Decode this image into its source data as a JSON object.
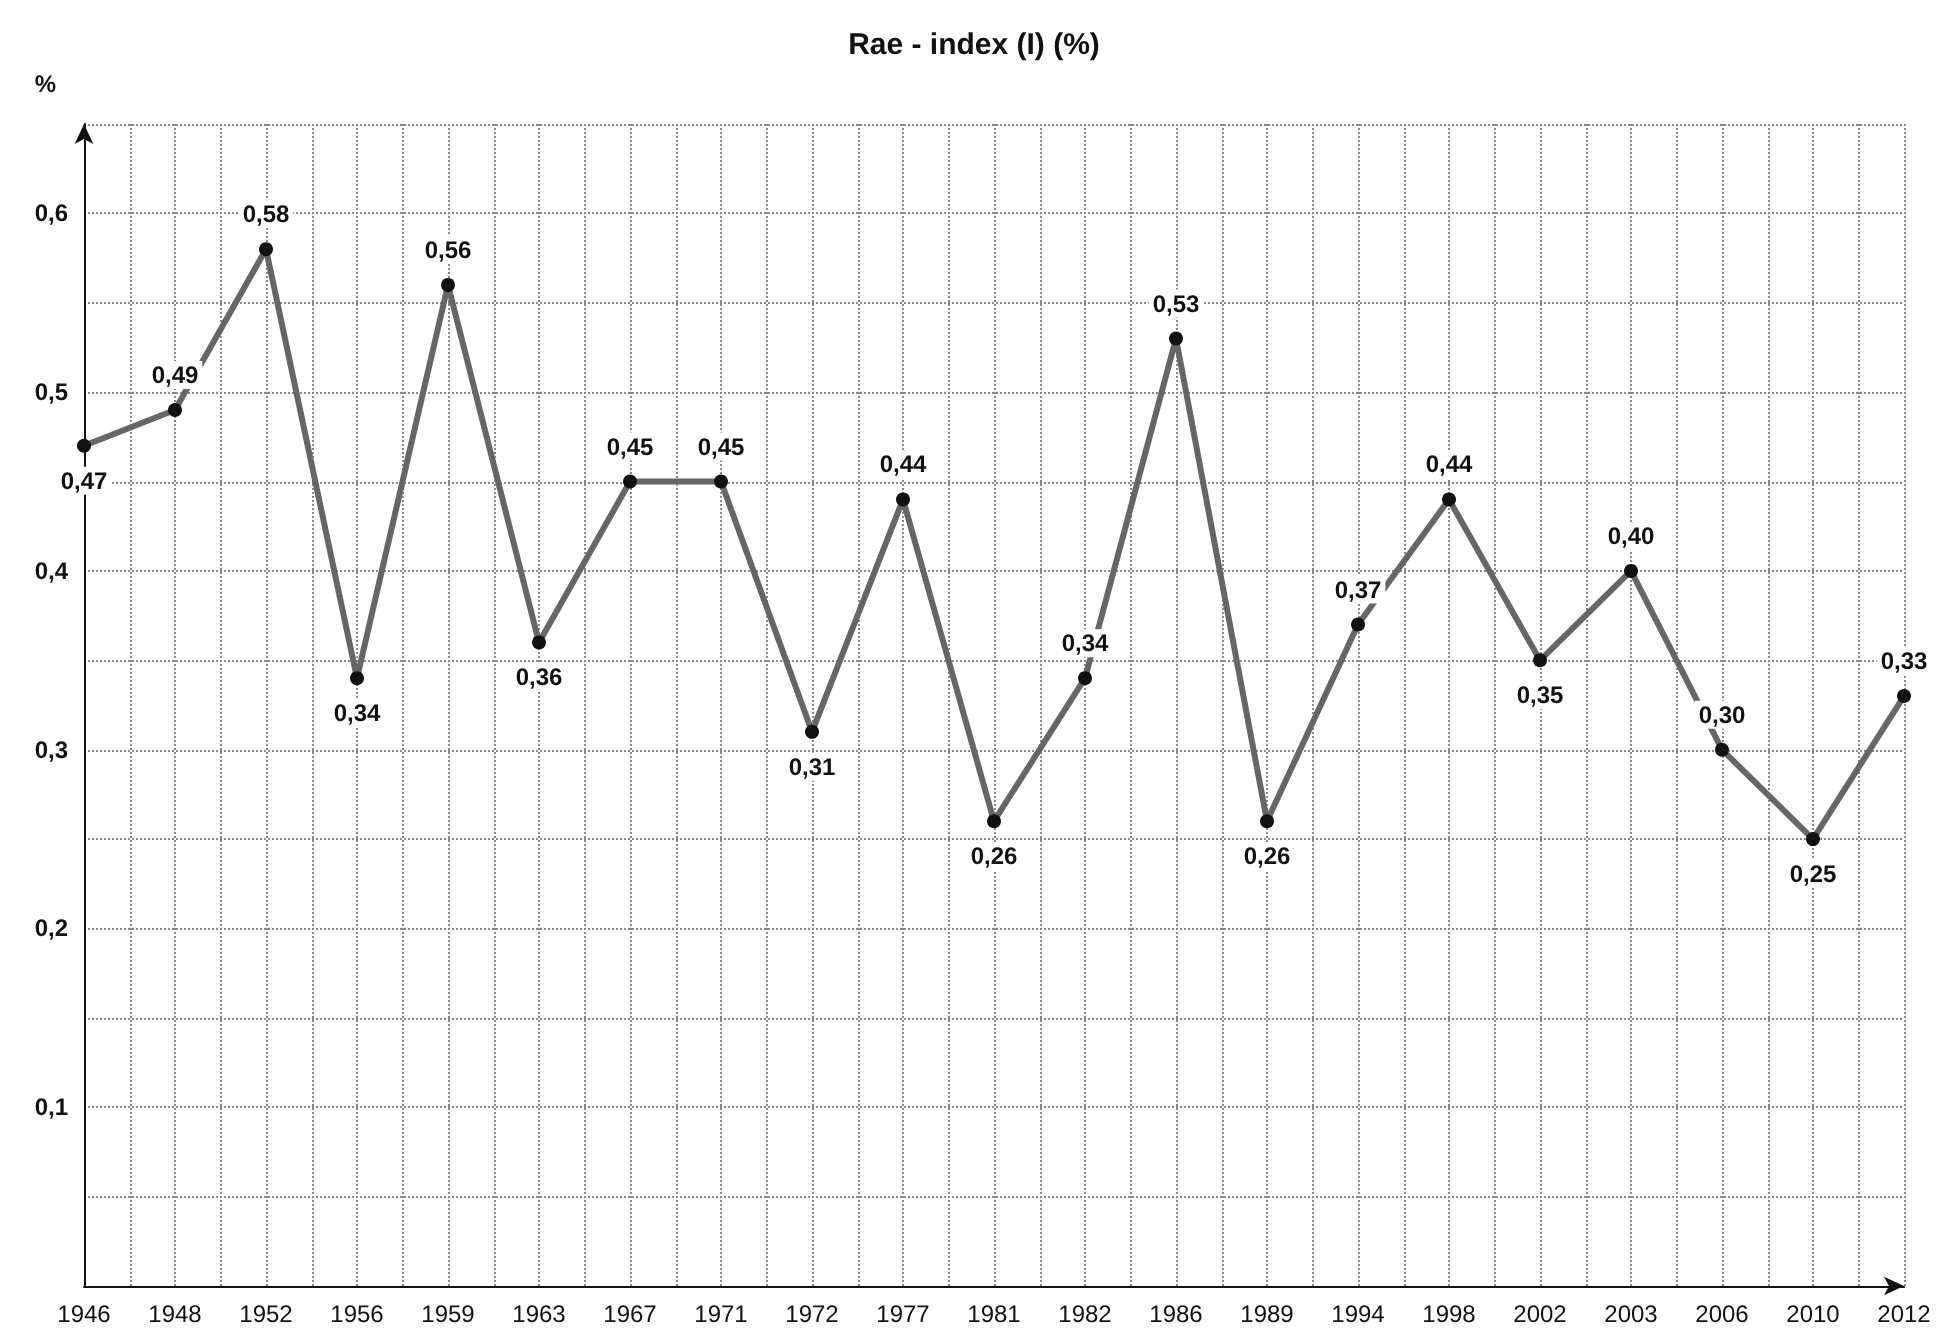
{
  "chart_data": {
    "type": "line",
    "title": "Rae - index (I) (%)",
    "ylabel": "%",
    "categories": [
      "1946",
      "1948",
      "1952",
      "1956",
      "1959",
      "1963",
      "1967",
      "1971",
      "1972",
      "1977",
      "1981",
      "1982",
      "1986",
      "1989",
      "1994",
      "1998",
      "2002",
      "2003",
      "2006",
      "2010",
      "2012"
    ],
    "series": [
      {
        "color": "#666666",
        "values": [
          0.47,
          0.49,
          0.58,
          0.34,
          0.56,
          0.36,
          0.45,
          0.45,
          0.31,
          0.44,
          0.26,
          0.34,
          0.53,
          0.26,
          0.37,
          0.44,
          0.35,
          0.4,
          0.3,
          0.25,
          0.33
        ],
        "value_labels": [
          "0,47",
          "0,49",
          "0,58",
          "0,34",
          "0,56",
          "0,36",
          "0,45",
          "0,45",
          "0,31",
          "0,44",
          "0,26",
          "0,34",
          "0,53",
          "0,26",
          "0,37",
          "0,44",
          "0,35",
          "0,40",
          "0,30",
          "0,25",
          "0,33"
        ]
      }
    ],
    "ylim": [
      0,
      0.65
    ],
    "yticks": [
      {
        "value": 0.05,
        "label": null
      },
      {
        "value": 0.1,
        "label": "0,1"
      },
      {
        "value": 0.15,
        "label": null
      },
      {
        "value": 0.2,
        "label": "0,2"
      },
      {
        "value": 0.25,
        "label": null
      },
      {
        "value": 0.3,
        "label": "0,3"
      },
      {
        "value": 0.35,
        "label": null
      },
      {
        "value": 0.4,
        "label": "0,4"
      },
      {
        "value": 0.45,
        "label": null
      },
      {
        "value": 0.5,
        "label": "0,5"
      },
      {
        "value": 0.55,
        "label": null
      },
      {
        "value": 0.6,
        "label": "0,6"
      },
      {
        "value": 0.65,
        "label": null
      }
    ],
    "grid": true,
    "marker": "circle",
    "line_style": "solid"
  }
}
